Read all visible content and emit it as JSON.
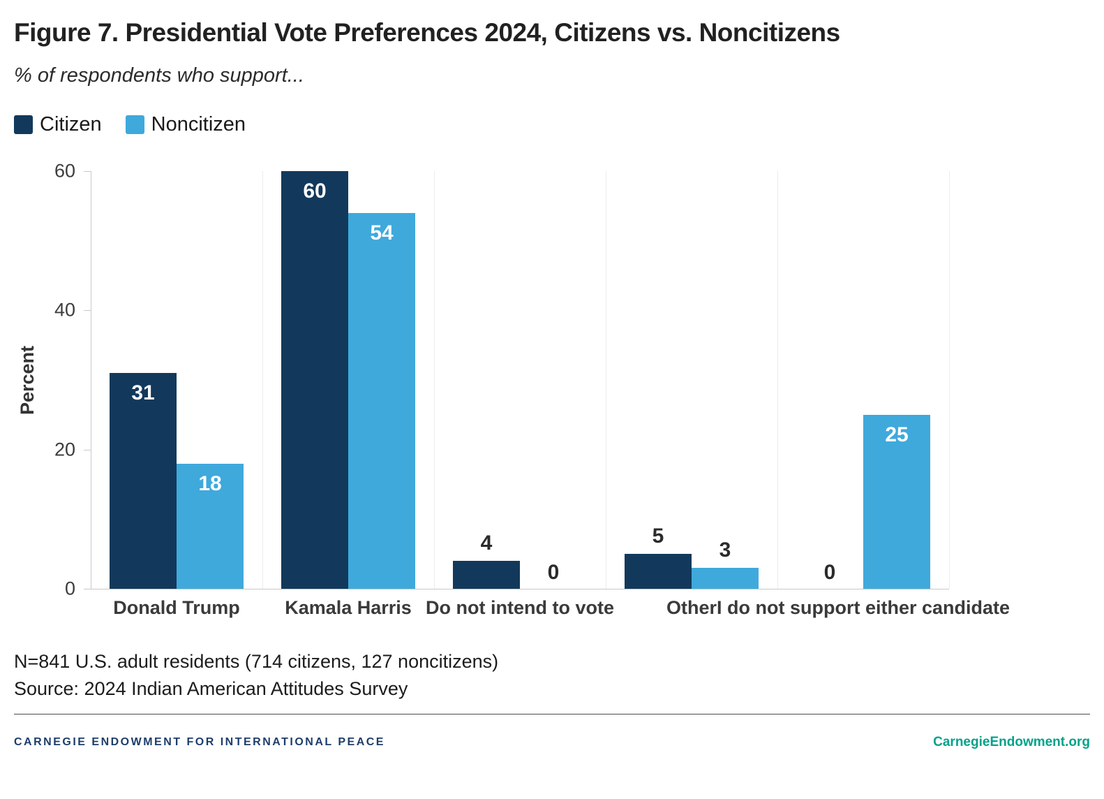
{
  "title": "Figure 7. Presidential Vote Preferences 2024, Citizens vs. Noncitizens",
  "subtitle": "% of respondents who support...",
  "legend": {
    "items": [
      {
        "label": "Citizen",
        "color": "#12395b"
      },
      {
        "label": "Noncitizen",
        "color": "#3fa9dc"
      }
    ]
  },
  "chart_data": {
    "type": "bar",
    "categories": [
      "Donald Trump",
      "Kamala Harris",
      "Do not intend to vote",
      "Other",
      "I do not support either candidate"
    ],
    "series": [
      {
        "name": "Citizen",
        "color": "#12395b",
        "values": [
          31,
          60,
          4,
          5,
          0
        ]
      },
      {
        "name": "Noncitizen",
        "color": "#3fa9dc",
        "values": [
          18,
          54,
          0,
          3,
          25
        ]
      }
    ],
    "title": "Figure 7. Presidential Vote Preferences 2024, Citizens vs. Noncitizens",
    "xlabel": "",
    "ylabel": "Percent",
    "ylim": [
      0,
      60
    ],
    "yticks": [
      0,
      20,
      40,
      60
    ],
    "grid": "vertical-separators-only",
    "legend_position": "top-left",
    "bar_label_color_inside": "#ffffff",
    "bar_label_color_outside": "#2b2b2b"
  },
  "notes": {
    "line1": "N=841 U.S. adult residents (714 citizens, 127 noncitizens)",
    "line2": "Source: 2024 Indian American Attitudes Survey"
  },
  "footer": {
    "brand": "CARNEGIE ENDOWMENT FOR INTERNATIONAL PEACE",
    "link": "CarnegieEndowment.org"
  }
}
